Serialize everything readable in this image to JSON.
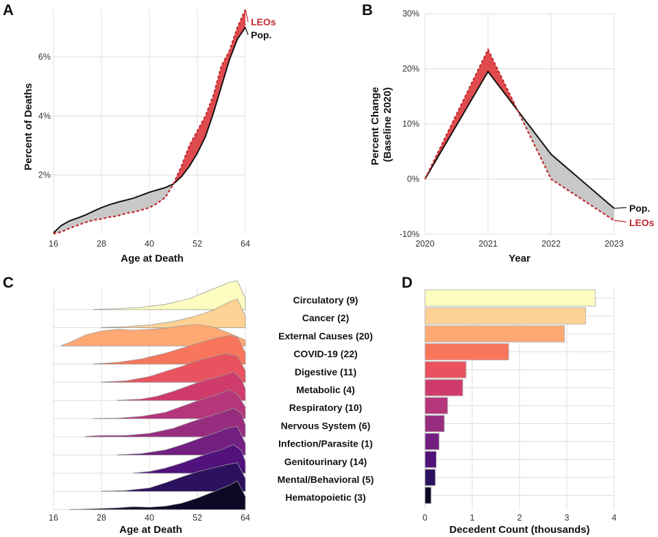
{
  "colors": {
    "leo": "#c0282d",
    "pop": "#111111",
    "above_fill": "#e04b4f",
    "below_fill": "#c8c8c8",
    "grid": "#dcdcdc"
  },
  "chart_data": [
    {
      "id": "A",
      "panel_label": "A",
      "type": "area",
      "title": "",
      "xlabel": "Age at Death",
      "ylabel": "Percent of Deaths",
      "xlim": [
        16,
        64
      ],
      "ylim": [
        0,
        7.6
      ],
      "xticks": [
        16,
        28,
        40,
        52,
        64
      ],
      "xtick_labels": [
        "16",
        "28",
        "40",
        "52",
        "64"
      ],
      "yticks": [
        2,
        4,
        6
      ],
      "ytick_labels": [
        "2%",
        "4%",
        "6%"
      ],
      "series": [
        {
          "name": "Pop.",
          "label": "Pop.",
          "x": [
            16,
            18,
            20,
            22,
            24,
            26,
            28,
            30,
            32,
            34,
            36,
            38,
            40,
            42,
            44,
            46,
            48,
            50,
            52,
            54,
            56,
            58,
            60,
            62,
            64
          ],
          "values": [
            0.05,
            0.3,
            0.45,
            0.55,
            0.65,
            0.78,
            0.9,
            1.0,
            1.08,
            1.15,
            1.22,
            1.32,
            1.42,
            1.5,
            1.58,
            1.7,
            1.95,
            2.3,
            2.75,
            3.3,
            4.1,
            5.0,
            5.9,
            6.6,
            7.0
          ]
        },
        {
          "name": "LEOs",
          "label": "LEOs",
          "x": [
            16,
            18,
            20,
            22,
            24,
            26,
            28,
            30,
            32,
            34,
            36,
            38,
            40,
            42,
            44,
            46,
            48,
            50,
            52,
            54,
            56,
            58,
            60,
            62,
            64
          ],
          "values": [
            0.02,
            0.08,
            0.2,
            0.3,
            0.4,
            0.48,
            0.52,
            0.58,
            0.62,
            0.7,
            0.75,
            0.82,
            0.9,
            1.05,
            1.25,
            1.7,
            2.3,
            3.0,
            3.5,
            4.0,
            4.7,
            5.7,
            6.2,
            7.0,
            7.6
          ]
        }
      ]
    },
    {
      "id": "B",
      "panel_label": "B",
      "type": "line",
      "title": "",
      "xlabel": "Year",
      "ylabel": "Percent Change\n(Baseline 2020)",
      "x": [
        2020,
        2021,
        2022,
        2023
      ],
      "xlim": [
        2020,
        2023
      ],
      "ylim": [
        -10,
        30
      ],
      "xticks": [
        2020,
        2021,
        2022,
        2023
      ],
      "xtick_labels": [
        "2020",
        "2021",
        "2022",
        "2023"
      ],
      "yticks": [
        -10,
        0,
        10,
        20,
        30
      ],
      "ytick_labels": [
        "-10%",
        "0%",
        "10%",
        "20%",
        "30%"
      ],
      "series": [
        {
          "name": "Pop.",
          "label": "Pop.",
          "values": [
            0,
            19.5,
            4.5,
            -5.3
          ]
        },
        {
          "name": "LEOs",
          "label": "LEOs",
          "values": [
            0,
            23.5,
            0,
            -7.5
          ]
        }
      ],
      "crossover": {
        "x": 2021.6,
        "y": 11.8
      }
    },
    {
      "id": "C",
      "panel_label": "C",
      "type": "area",
      "subtype": "ridgeline",
      "title": "",
      "xlabel": "Age at Death",
      "ylabel": "",
      "xlim": [
        16,
        64
      ],
      "xticks": [
        16,
        28,
        40,
        52,
        64
      ],
      "xtick_labels": [
        "16",
        "28",
        "40",
        "52",
        "64"
      ],
      "categories": [
        "Circulatory (9)",
        "Cancer (2)",
        "External Causes (20)",
        "COVID-19 (22)",
        "Digestive (11)",
        "Metabolic (4)",
        "Respiratory (10)",
        "Nervous System (6)",
        "Infection/Parasite (1)",
        "Genitourinary (14)",
        "Mental/Behavioral (5)",
        "Hematopoietic (3)"
      ],
      "series": [
        {
          "name": "Circulatory (9)",
          "color": "#fcfdbf",
          "ages": [
            26,
            32,
            38,
            44,
            50,
            56,
            60,
            62,
            64
          ],
          "density": [
            0.01,
            0.03,
            0.08,
            0.18,
            0.38,
            0.72,
            0.95,
            1.0,
            0.4
          ]
        },
        {
          "name": "Cancer (2)",
          "color": "#fdd294",
          "ages": [
            28,
            34,
            40,
            46,
            52,
            56,
            60,
            62,
            64
          ],
          "density": [
            0.01,
            0.04,
            0.1,
            0.22,
            0.42,
            0.62,
            0.9,
            1.0,
            0.4
          ]
        },
        {
          "name": "External Causes (20)",
          "color": "#fea873",
          "ages": [
            18,
            20,
            24,
            28,
            32,
            36,
            40,
            44,
            48,
            52,
            56,
            60,
            64
          ],
          "density": [
            0.02,
            0.12,
            0.38,
            0.52,
            0.58,
            0.55,
            0.58,
            0.62,
            0.7,
            0.75,
            0.66,
            0.45,
            0.2
          ]
        },
        {
          "name": "COVID-19 (22)",
          "color": "#f8765c",
          "ages": [
            26,
            32,
            38,
            44,
            48,
            52,
            56,
            60,
            62,
            64
          ],
          "density": [
            0.01,
            0.06,
            0.18,
            0.38,
            0.55,
            0.72,
            0.88,
            1.0,
            0.95,
            0.4
          ]
        },
        {
          "name": "Digestive (11)",
          "color": "#e8535f",
          "ages": [
            28,
            34,
            40,
            44,
            48,
            52,
            56,
            59,
            62,
            64
          ],
          "density": [
            0.01,
            0.05,
            0.2,
            0.38,
            0.55,
            0.75,
            0.9,
            1.0,
            0.92,
            0.4
          ]
        },
        {
          "name": "Metabolic (4)",
          "color": "#cf3c6b",
          "ages": [
            32,
            38,
            42,
            46,
            50,
            54,
            58,
            61,
            63,
            64
          ],
          "density": [
            0.01,
            0.05,
            0.15,
            0.32,
            0.52,
            0.72,
            0.85,
            1.0,
            0.75,
            0.4
          ]
        },
        {
          "name": "Respiratory (10)",
          "color": "#b5367a",
          "ages": [
            26,
            32,
            38,
            44,
            48,
            52,
            56,
            60,
            62,
            64
          ],
          "density": [
            0.01,
            0.02,
            0.08,
            0.22,
            0.42,
            0.62,
            0.8,
            1.0,
            0.85,
            0.4
          ]
        },
        {
          "name": "Nervous System (6)",
          "color": "#982d80",
          "ages": [
            24,
            28,
            34,
            40,
            46,
            50,
            54,
            58,
            61,
            63,
            64
          ],
          "density": [
            0.02,
            0.05,
            0.05,
            0.12,
            0.3,
            0.5,
            0.68,
            0.85,
            1.0,
            0.82,
            0.4
          ]
        },
        {
          "name": "Infection/Parasite (1)",
          "color": "#721f81",
          "ages": [
            32,
            38,
            44,
            48,
            52,
            56,
            60,
            62,
            64
          ],
          "density": [
            0.01,
            0.05,
            0.18,
            0.35,
            0.55,
            0.75,
            0.95,
            1.0,
            0.4
          ]
        },
        {
          "name": "Genitourinary (14)",
          "color": "#51127c",
          "ages": [
            36,
            40,
            44,
            48,
            52,
            55,
            58,
            61,
            63,
            64
          ],
          "density": [
            0.01,
            0.06,
            0.18,
            0.35,
            0.55,
            0.7,
            0.82,
            1.0,
            0.8,
            0.4
          ]
        },
        {
          "name": "Mental/Behavioral (5)",
          "color": "#2c115f",
          "ages": [
            28,
            34,
            40,
            44,
            48,
            52,
            56,
            60,
            62,
            64
          ],
          "density": [
            0.01,
            0.03,
            0.12,
            0.3,
            0.5,
            0.68,
            0.82,
            0.95,
            1.0,
            0.45
          ]
        },
        {
          "name": "Hematopoietic (3)",
          "color": "#0c0927",
          "ages": [
            20,
            26,
            32,
            36,
            40,
            44,
            48,
            52,
            56,
            60,
            62,
            64
          ],
          "density": [
            0.01,
            0.03,
            0.06,
            0.1,
            0.08,
            0.12,
            0.22,
            0.4,
            0.62,
            0.85,
            1.0,
            0.45
          ]
        }
      ]
    },
    {
      "id": "D",
      "panel_label": "D",
      "type": "bar",
      "orientation": "horizontal",
      "title": "",
      "xlabel": "Decedent Count (thousands)",
      "ylabel": "",
      "xlim": [
        0,
        4
      ],
      "xticks": [
        0,
        1,
        2,
        3,
        4
      ],
      "xtick_labels": [
        "0",
        "1",
        "2",
        "3",
        "4"
      ],
      "categories": [
        "Circulatory (9)",
        "Cancer (2)",
        "External Causes (20)",
        "COVID-19 (22)",
        "Digestive (11)",
        "Metabolic (4)",
        "Respiratory (10)",
        "Nervous System (6)",
        "Infection/Parasite (1)",
        "Genitourinary (14)",
        "Mental/Behavioral (5)",
        "Hematopoietic (3)"
      ],
      "values": [
        3.6,
        3.4,
        2.95,
        1.77,
        0.87,
        0.8,
        0.48,
        0.41,
        0.3,
        0.24,
        0.22,
        0.13
      ],
      "colors": [
        "#fcfdbf",
        "#fdd294",
        "#fea873",
        "#f8765c",
        "#e8535f",
        "#cf3c6b",
        "#b5367a",
        "#982d80",
        "#721f81",
        "#51127c",
        "#2c115f",
        "#0c0927"
      ]
    }
  ]
}
